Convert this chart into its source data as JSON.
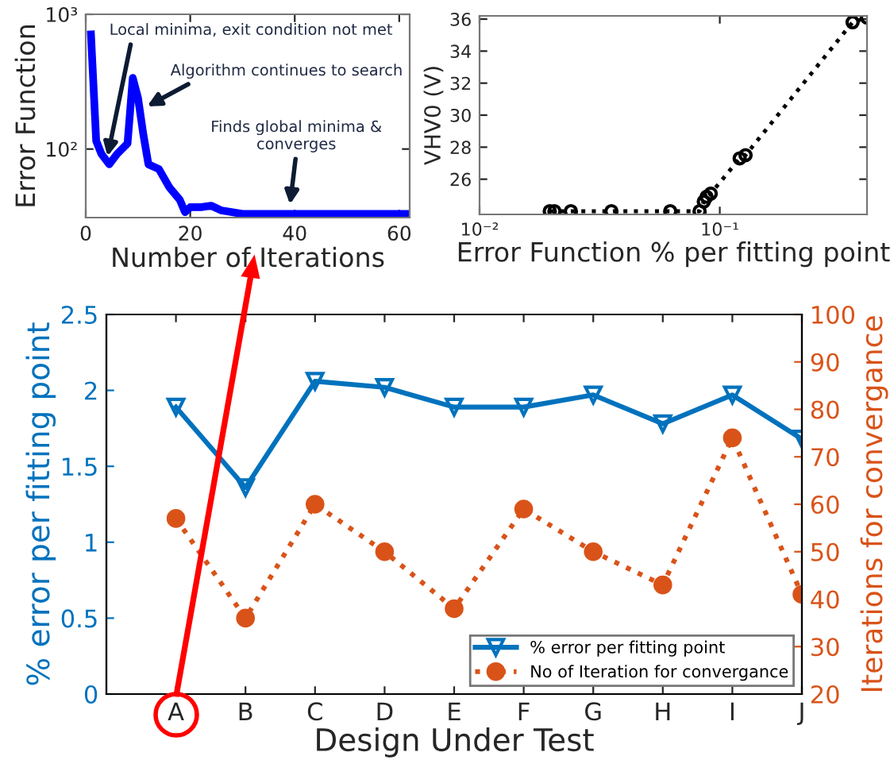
{
  "chart_data": [
    {
      "type": "line",
      "xlabel": "Number of Iterations",
      "ylabel": "Error Function",
      "log": "y",
      "xlim": [
        0,
        62
      ],
      "xticks": [
        0,
        20,
        40,
        60
      ],
      "ylim": [
        31,
        1000
      ],
      "yticks": [
        {
          "value": 100,
          "label": "10²"
        },
        {
          "value": 1000,
          "label": "10³"
        }
      ],
      "grid": false,
      "legend": false,
      "marker": "none",
      "line_style": "solid",
      "series": [
        {
          "color": "#0000ff",
          "x": [
            1,
            2,
            3,
            4.5,
            6,
            8,
            9,
            10,
            11,
            12,
            14,
            16,
            18,
            19,
            20,
            22,
            24,
            26,
            30,
            40,
            50,
            60,
            62
          ],
          "values": [
            708,
            115,
            92,
            77,
            92,
            110,
            337,
            240,
            130,
            77,
            71,
            52,
            42,
            34,
            37,
            37,
            38,
            35,
            33,
            33,
            33,
            33,
            33
          ]
        }
      ],
      "annotations": [
        {
          "text": "Local minima, exit condition not met",
          "x": 4,
          "y": 82
        },
        {
          "text": "Algorithm continues to search",
          "x": 11,
          "y": 200
        },
        {
          "text": "Finds global minima &\nconverges",
          "x": 39,
          "y": 36
        }
      ]
    },
    {
      "type": "line",
      "xlabel": "Error Function % per fitting point",
      "ylabel": "VHV0 (V)",
      "log": "x",
      "xlim": [
        0.01,
        0.41
      ],
      "xticks": [
        {
          "value": 0.01,
          "label": "10⁻²"
        },
        {
          "value": 0.1,
          "label": "10⁻¹"
        }
      ],
      "ylim": [
        23.8,
        36.2
      ],
      "yticks": [
        26,
        28,
        30,
        32,
        34,
        36
      ],
      "grid": false,
      "legend": false,
      "marker": "circle",
      "line_style": "dotted",
      "series": [
        {
          "color": "#000000",
          "x": [
            0.0196,
            0.0205,
            0.024,
            0.0354,
            0.0622,
            0.0824,
            0.0858,
            0.0881,
            0.0917,
            0.121,
            0.128,
            0.357,
            0.41
          ],
          "values": [
            24,
            24,
            24,
            24,
            24,
            24,
            24.6,
            24.9,
            25.1,
            27.3,
            27.5,
            35.8,
            36.1
          ]
        }
      ]
    },
    {
      "type": "line",
      "xlabel": "Design Under Test",
      "ylabel": "% error per fitting point",
      "y2label": "Iterations for convergance",
      "categories": [
        "A",
        "B",
        "C",
        "D",
        "E",
        "F",
        "G",
        "H",
        "I",
        "J"
      ],
      "ylim": [
        0,
        2.5
      ],
      "yticks": [
        0,
        0.5,
        1,
        1.5,
        2,
        2.5
      ],
      "y2lim": [
        20,
        100
      ],
      "y2ticks": [
        20,
        30,
        40,
        50,
        60,
        70,
        80,
        90,
        100
      ],
      "grid": false,
      "legend": "bottom right",
      "series": [
        {
          "name": "% error per fitting point",
          "color": "#0072bd",
          "marker": "triangle",
          "line_style": "solid",
          "values": [
            1.89,
            1.36,
            2.06,
            2.02,
            1.89,
            1.89,
            1.97,
            1.78,
            1.97,
            1.68
          ]
        },
        {
          "name": "No of Iteration for convergance",
          "color": "#d95319",
          "marker": "circle",
          "line_style": "dotted",
          "axis": "y2",
          "values": [
            57,
            36,
            60,
            50,
            38,
            59,
            50,
            43,
            74,
            41
          ]
        }
      ]
    }
  ]
}
